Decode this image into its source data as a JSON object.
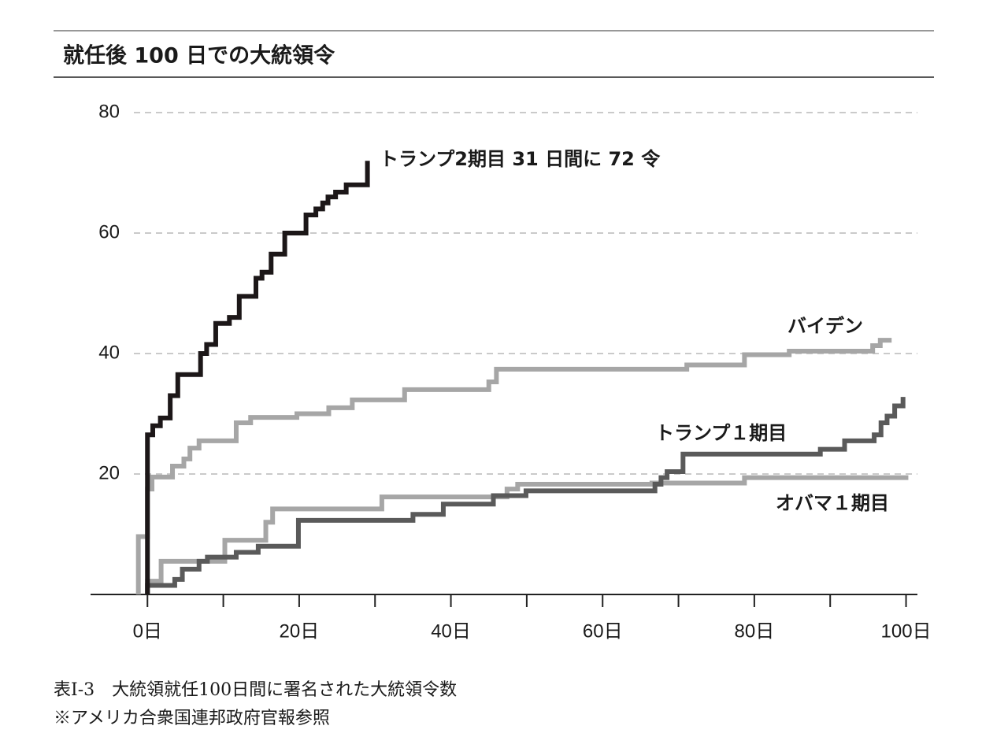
{
  "chart_data": {
    "type": "step",
    "title": "就任後 100 日での大統領令",
    "caption": [
      "表I-3　大統領就任100日間に署名された大統領令数",
      "※アメリカ合衆国連邦政府官報参照"
    ],
    "xlim": [
      -7.5,
      101.5
    ],
    "ylim": [
      0,
      80
    ],
    "xticks": [
      {
        "value": 0,
        "label": "0日"
      },
      {
        "value": 20,
        "label": "20日"
      },
      {
        "value": 40,
        "label": "40日"
      },
      {
        "value": 60,
        "label": "60日"
      },
      {
        "value": 80,
        "label": "80日"
      },
      {
        "value": 100,
        "label": "100日"
      }
    ],
    "xminor_ticks": [
      10,
      30,
      50,
      70,
      90
    ],
    "yticks": [
      20,
      40,
      60,
      80
    ],
    "grid": true,
    "series": [
      {
        "name": "オバマ１期目",
        "color": "#a6a6a6",
        "x": [
          0,
          0,
          1.8,
          10.2,
          15.6,
          16.5,
          30.9,
          47.4,
          48.8,
          66.5,
          78.7,
          100.3
        ],
        "values": [
          0,
          2.2,
          5.5,
          9,
          12,
          14.2,
          16.2,
          17.5,
          18.3,
          18.5,
          19.4,
          19.4
        ]
      },
      {
        "name": "トランプ１期目",
        "color": "#5a5a5a",
        "x": [
          0,
          0,
          3.6,
          4.6,
          6.8,
          7.9,
          11.7,
          14.6,
          19.9,
          35,
          39,
          45.6,
          49.9,
          66.9,
          67.7,
          68.5,
          70.6,
          88.7,
          91.9,
          95.8,
          96.7,
          97.5,
          98.5,
          99.6,
          99.6
        ],
        "values": [
          0,
          1.5,
          2.5,
          4.2,
          5.5,
          6.2,
          7,
          8,
          12.3,
          13.3,
          15,
          16.4,
          17.2,
          18.3,
          19.4,
          20.4,
          23.3,
          24.1,
          25.5,
          26.5,
          28.5,
          29.6,
          31.3,
          32.8,
          32.8
        ]
      },
      {
        "name": "バイデン",
        "color": "#a6a6a6",
        "x": [
          -1.2,
          -1.2,
          0,
          0.6,
          3.3,
          4.8,
          5.6,
          6.8,
          11.7,
          13.6,
          19.7,
          23.9,
          27,
          33.9,
          45,
          46,
          71.1,
          78.7,
          84.6,
          95.6,
          96.6,
          98.1
        ],
        "values": [
          0,
          9.6,
          17.5,
          19.5,
          21.3,
          22.5,
          24.3,
          25.5,
          28.5,
          29.4,
          30,
          31,
          32.3,
          34,
          35.3,
          37.4,
          38.1,
          39.8,
          40.4,
          41.3,
          42.2,
          42.2
        ]
      },
      {
        "name": "トランプ2期目 31 日間に 72 令",
        "color": "#1c1718",
        "x": [
          0,
          0,
          0.7,
          1.7,
          3,
          4,
          7,
          7.8,
          9,
          10.8,
          12.1,
          14.3,
          15.1,
          16.3,
          18.1,
          20.9,
          22.2,
          23.1,
          23.8,
          24.8,
          26.2,
          29,
          29
        ],
        "values": [
          0,
          26.5,
          28,
          29.3,
          33,
          36.5,
          40,
          41.5,
          45,
          46,
          49.5,
          52.5,
          53.5,
          56.5,
          60,
          63,
          64,
          65,
          66,
          66.8,
          68,
          72,
          72
        ]
      }
    ]
  }
}
